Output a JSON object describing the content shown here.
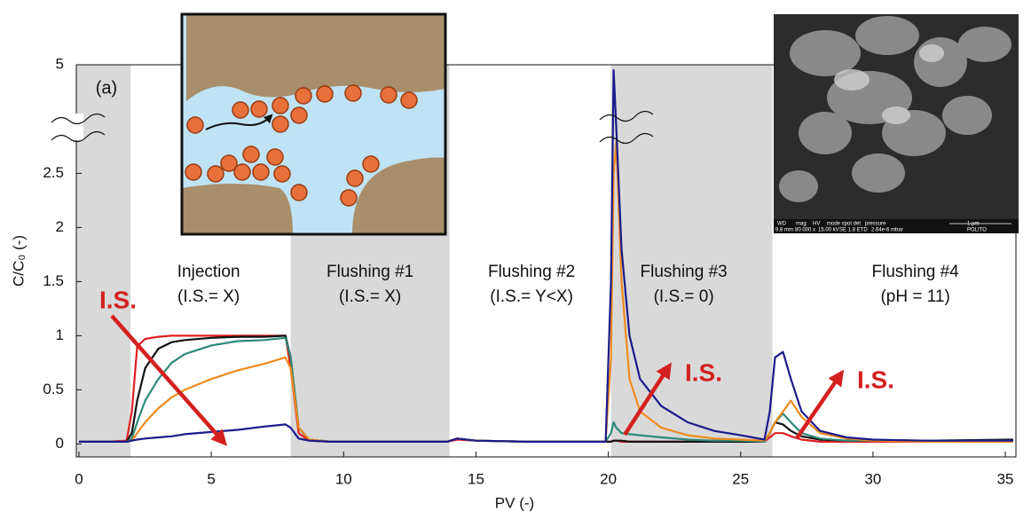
{
  "chart_data": {
    "type": "line",
    "panel_label": "(a)",
    "xlabel": "PV (-)",
    "ylabel": "C/C₀ (-)",
    "xlim": [
      -0.1,
      35.4
    ],
    "ylim": [
      -0.12,
      5
    ],
    "ybreak": [
      2.8,
      4.6
    ],
    "xticks": [
      0,
      5,
      10,
      15,
      20,
      25,
      30,
      35
    ],
    "yticks": [
      0,
      0.5,
      1,
      1.5,
      2,
      2.5,
      5
    ],
    "bands": [
      [
        -0.1,
        1.95
      ],
      [
        8,
        14
      ],
      [
        20.1,
        26.2
      ]
    ],
    "band_color": "#d9d9d9",
    "phases": [
      {
        "name": "Injection",
        "condition": "(I.S.= X)",
        "x": 4.9
      },
      {
        "name": "Flushing #1",
        "condition": "(I.S.= X)",
        "x": 11
      },
      {
        "name": "Flushing #2",
        "condition": "(I.S.= Y<X)",
        "x": 17.1
      },
      {
        "name": "Flushing #3",
        "condition": "(I.S.= 0)",
        "x": 22.85
      },
      {
        "name": "Flushing #4",
        "condition": "(pH = 11)",
        "x": 31.6
      }
    ],
    "annotations": [
      "I.S.",
      "I.S.",
      "I.S."
    ],
    "x": [
      0,
      1,
      1.8,
      2.0,
      2.2,
      2.5,
      3,
      3.5,
      4,
      5,
      6,
      7,
      7.8,
      8.0,
      8.3,
      8.7,
      9.5,
      11,
      13,
      13.9,
      14.3,
      15,
      17,
      19,
      19.9,
      20.1,
      20.2,
      20.3,
      20.5,
      20.8,
      21.2,
      22,
      23,
      24,
      25,
      25.9,
      26.1,
      26.3,
      26.6,
      26.9,
      27.3,
      28,
      29,
      30,
      32,
      35.3
    ],
    "series": [
      {
        "color": "#e02020",
        "values": [
          0.02,
          0.02,
          0.03,
          0.3,
          0.9,
          0.97,
          0.99,
          1.0,
          1.0,
          1.0,
          1.0,
          1.0,
          1.0,
          0.7,
          0.1,
          0.03,
          0.02,
          0.02,
          0.02,
          0.02,
          0.04,
          0.03,
          0.02,
          0.02,
          0.02,
          0.02,
          0.03,
          0.03,
          0.02,
          0.02,
          0.02,
          0.02,
          0.02,
          0.02,
          0.02,
          0.02,
          0.06,
          0.1,
          0.1,
          0.07,
          0.04,
          0.02,
          0.02,
          0.02,
          0.02,
          0.02
        ]
      },
      {
        "color": "#111111",
        "values": [
          0.02,
          0.02,
          0.02,
          0.1,
          0.4,
          0.7,
          0.88,
          0.94,
          0.96,
          0.98,
          0.99,
          0.99,
          1.0,
          0.8,
          0.15,
          0.04,
          0.02,
          0.02,
          0.02,
          0.02,
          0.05,
          0.03,
          0.02,
          0.02,
          0.02,
          0.02,
          0.03,
          0.03,
          0.03,
          0.02,
          0.02,
          0.02,
          0.02,
          0.02,
          0.02,
          0.02,
          0.1,
          0.2,
          0.18,
          0.12,
          0.07,
          0.04,
          0.03,
          0.03,
          0.03,
          0.04
        ]
      },
      {
        "color": "#2e8a7a",
        "values": [
          0.02,
          0.02,
          0.02,
          0.05,
          0.2,
          0.4,
          0.6,
          0.75,
          0.83,
          0.91,
          0.95,
          0.96,
          0.98,
          0.8,
          0.15,
          0.04,
          0.02,
          0.02,
          0.02,
          0.02,
          0.05,
          0.03,
          0.02,
          0.02,
          0.02,
          0.1,
          0.2,
          0.15,
          0.1,
          0.09,
          0.08,
          0.06,
          0.04,
          0.03,
          0.03,
          0.02,
          0.1,
          0.2,
          0.28,
          0.2,
          0.1,
          0.05,
          0.03,
          0.03,
          0.03,
          0.03
        ]
      },
      {
        "color": "#f08a1c",
        "values": [
          0.02,
          0.02,
          0.02,
          0.03,
          0.1,
          0.2,
          0.33,
          0.43,
          0.5,
          0.6,
          0.68,
          0.74,
          0.8,
          0.7,
          0.15,
          0.04,
          0.02,
          0.02,
          0.02,
          0.02,
          0.05,
          0.03,
          0.02,
          0.02,
          0.02,
          0.8,
          2.5,
          2.79,
          1.5,
          0.6,
          0.3,
          0.15,
          0.08,
          0.05,
          0.04,
          0.03,
          0.1,
          0.2,
          0.3,
          0.4,
          0.25,
          0.1,
          0.05,
          0.03,
          0.02,
          0.02
        ]
      },
      {
        "color": "#1a1a8c",
        "values": [
          0.02,
          0.02,
          0.02,
          0.03,
          0.04,
          0.05,
          0.06,
          0.07,
          0.09,
          0.11,
          0.13,
          0.16,
          0.18,
          0.15,
          0.05,
          0.03,
          0.02,
          0.02,
          0.02,
          0.02,
          0.05,
          0.03,
          0.02,
          0.02,
          0.02,
          1.5,
          4.95,
          3.5,
          1.8,
          1.0,
          0.6,
          0.35,
          0.2,
          0.12,
          0.08,
          0.04,
          0.3,
          0.8,
          0.85,
          0.6,
          0.3,
          0.12,
          0.06,
          0.04,
          0.03,
          0.03
        ]
      }
    ],
    "sem_caption": [
      "WD",
      "mag",
      "HV",
      "mode spot det",
      "pressure",
      "1 μm",
      "9.8 mm",
      "80 000 x",
      "15.00 kV",
      "SE  1.8  ETD",
      "2.64e-6 mbar",
      "POLITO"
    ]
  }
}
